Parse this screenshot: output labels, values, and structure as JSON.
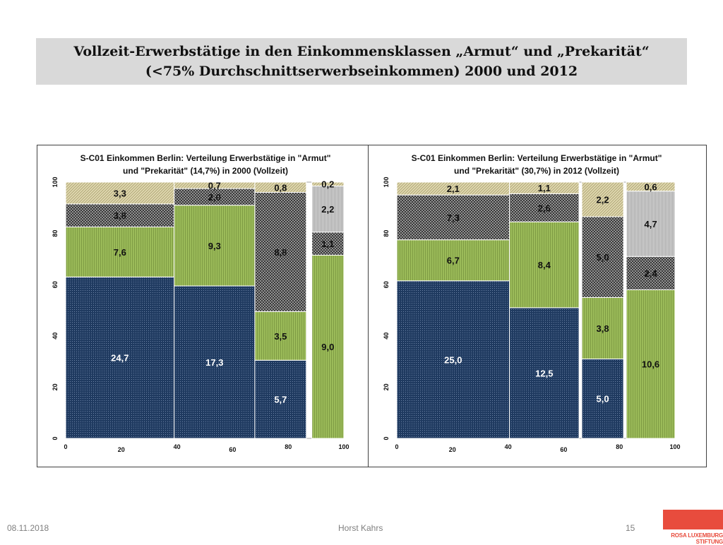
{
  "title": {
    "line1": "Vollzeit-Erwerbstätige in den Einkommensklassen „Armut“ und „Prekarität“",
    "line2": "(<75% Durchschnittserwerbseinkommen) 2000 und 2012"
  },
  "chart_data": [
    {
      "type": "mekko",
      "title": [
        "S-C01 Einkommen Berlin: Verteilung Erwerbstätige in \"Armut\"",
        "und \"Prekarität\" (14,7%) in 2000 (Vollzeit)"
      ],
      "xlim": [
        0,
        100
      ],
      "ylim": [
        0,
        100
      ],
      "xticks": [
        0,
        20,
        40,
        60,
        80,
        100
      ],
      "yticks": [
        0,
        20,
        40,
        60,
        80,
        100
      ],
      "columns": [
        {
          "x": [
            0,
            39
          ],
          "segments": [
            {
              "pattern": "blue",
              "y": [
                0,
                63
              ],
              "label": "24,7"
            },
            {
              "pattern": "green",
              "y": [
                63,
                82.5
              ],
              "label": "7,6"
            },
            {
              "pattern": "cross",
              "y": [
                82.5,
                91.5
              ],
              "label": "3,8"
            },
            {
              "pattern": "beige",
              "y": [
                91.5,
                100
              ],
              "label": "3,3"
            }
          ]
        },
        {
          "x": [
            39,
            68
          ],
          "segments": [
            {
              "pattern": "blue",
              "y": [
                0,
                59.5
              ],
              "label": "17,3"
            },
            {
              "pattern": "green",
              "y": [
                59.5,
                91
              ],
              "label": "9,3"
            },
            {
              "pattern": "cross",
              "y": [
                91,
                97.5
              ],
              "label": "2,0"
            },
            {
              "pattern": "beige",
              "y": [
                97.5,
                100
              ],
              "label": "0,7"
            }
          ]
        },
        {
          "x": [
            68,
            86.5
          ],
          "segments": [
            {
              "pattern": "blue",
              "y": [
                0,
                30.5
              ],
              "label": "5,7"
            },
            {
              "pattern": "green",
              "y": [
                30.5,
                49.5
              ],
              "label": "3,5"
            },
            {
              "pattern": "cross",
              "y": [
                49.5,
                96
              ],
              "label": "8,8"
            },
            {
              "pattern": "beige",
              "y": [
                96,
                100
              ],
              "label": "0,8"
            }
          ]
        },
        {
          "x": [
            88.5,
            100
          ],
          "segments": [
            {
              "pattern": "green",
              "y": [
                0,
                71.5
              ],
              "label": "9,0"
            },
            {
              "pattern": "cross",
              "y": [
                71.5,
                80.5
              ],
              "label": "1,1"
            },
            {
              "pattern": "grey",
              "y": [
                80.5,
                98.5
              ],
              "label": "2,2"
            },
            {
              "pattern": "beige",
              "y": [
                98.5,
                100
              ],
              "label": "0,2"
            }
          ]
        }
      ]
    },
    {
      "type": "mekko",
      "title": [
        "S-C01 Einkommen Berlin: Verteilung Erwerbstätige in \"Armut\"",
        "und \"Prekarität\" (30,7%) in 2012 (Vollzeit)"
      ],
      "xlim": [
        0,
        100
      ],
      "ylim": [
        0,
        100
      ],
      "xticks": [
        0,
        20,
        40,
        60,
        80,
        100
      ],
      "yticks": [
        0,
        20,
        40,
        60,
        80,
        100
      ],
      "columns": [
        {
          "x": [
            0,
            40.5
          ],
          "segments": [
            {
              "pattern": "blue",
              "y": [
                0,
                61.5
              ],
              "label": "25,0"
            },
            {
              "pattern": "green",
              "y": [
                61.5,
                77.5
              ],
              "label": "6,7"
            },
            {
              "pattern": "cross",
              "y": [
                77.5,
                95
              ],
              "label": "7,3"
            },
            {
              "pattern": "beige",
              "y": [
                95,
                100
              ],
              "label": "2,1"
            }
          ]
        },
        {
          "x": [
            40.5,
            65.5
          ],
          "segments": [
            {
              "pattern": "blue",
              "y": [
                0,
                51
              ],
              "label": "12,5"
            },
            {
              "pattern": "green",
              "y": [
                51,
                84.5
              ],
              "label": "8,4"
            },
            {
              "pattern": "cross",
              "y": [
                84.5,
                95.5
              ],
              "label": "2,6"
            },
            {
              "pattern": "beige",
              "y": [
                95.5,
                100
              ],
              "label": "1,1"
            }
          ]
        },
        {
          "x": [
            66.5,
            81.5
          ],
          "segments": [
            {
              "pattern": "blue",
              "y": [
                0,
                31
              ],
              "label": "5,0"
            },
            {
              "pattern": "green",
              "y": [
                31,
                55
              ],
              "label": "3,8"
            },
            {
              "pattern": "cross",
              "y": [
                55,
                86.5
              ],
              "label": "5,0"
            },
            {
              "pattern": "beige",
              "y": [
                86.5,
                100
              ],
              "label": "2,2"
            }
          ]
        },
        {
          "x": [
            82.5,
            100
          ],
          "segments": [
            {
              "pattern": "green",
              "y": [
                0,
                58
              ],
              "label": "10,6"
            },
            {
              "pattern": "cross",
              "y": [
                58,
                71
              ],
              "label": "2,4"
            },
            {
              "pattern": "grey",
              "y": [
                71,
                96.5
              ],
              "label": "4,7"
            },
            {
              "pattern": "beige",
              "y": [
                96.5,
                100
              ],
              "label": "0,6"
            }
          ]
        }
      ]
    }
  ],
  "colors": {
    "blue": "#1f3a60",
    "green": "#9bbb59",
    "cross": "#262626",
    "grey": "#a6a6a6",
    "beige": "#e0d8b0"
  },
  "footer": {
    "date": "08.11.2018",
    "author": "Horst Kahrs",
    "page": "15"
  },
  "logo": {
    "text": "ROSA LUXEMBURG STIFTUNG"
  }
}
